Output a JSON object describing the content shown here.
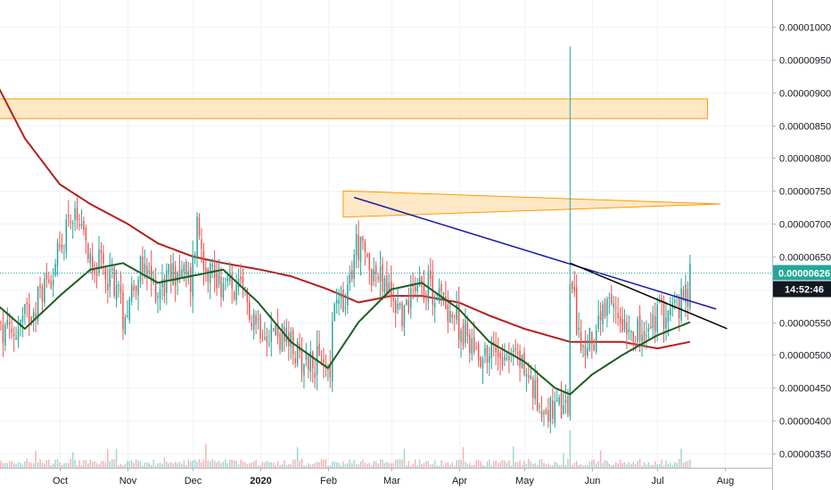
{
  "chart_data": {
    "type": "candlestick",
    "colors": {
      "up": "#26a69a",
      "down": "#ef5350",
      "ma_fast": "#1b5e20",
      "ma_slow": "#b71c1c",
      "trendline_blue": "#1a1aaa",
      "trendline_black": "#000000",
      "zone_fill": "#ffe0b2",
      "zone_border": "#ff9800",
      "last_price_line": "#26a69a",
      "timer_bg": "#131722"
    },
    "y_axis": {
      "min": 3.3e-06,
      "max": 1.04e-05,
      "ticks": [
        "0.00001000",
        "0.00000950",
        "0.00000900",
        "0.00000850",
        "0.00000800",
        "0.00000750",
        "0.00000700",
        "0.00000650",
        "0.00000600",
        "0.00000550",
        "0.00000500",
        "0.00000450",
        "0.00000400",
        "0.00000350"
      ]
    },
    "x_axis": {
      "ticks": [
        {
          "label": "Oct",
          "date": "2019-10-01",
          "bold": false
        },
        {
          "label": "Nov",
          "date": "2019-11-01",
          "bold": false
        },
        {
          "label": "Dec",
          "date": "2019-12-01",
          "bold": false
        },
        {
          "label": "2020",
          "date": "2020-01-01",
          "bold": true
        },
        {
          "label": "Feb",
          "date": "2020-02-01",
          "bold": false
        },
        {
          "label": "Mar",
          "date": "2020-03-01",
          "bold": false
        },
        {
          "label": "Apr",
          "date": "2020-04-01",
          "bold": false
        },
        {
          "label": "May",
          "date": "2020-05-01",
          "bold": false
        },
        {
          "label": "Jun",
          "date": "2020-06-01",
          "bold": false
        },
        {
          "label": "Jul",
          "date": "2020-07-01",
          "bold": false
        },
        {
          "label": "Aug",
          "date": "2020-08-01",
          "bold": false
        }
      ]
    },
    "last_price": {
      "value": 6.26e-06,
      "label": "0.00000626"
    },
    "countdown": "14:52:46",
    "close_anchors": [
      [
        "2019-09-09",
        5.3e-06
      ],
      [
        "2019-09-20",
        5.8e-06
      ],
      [
        "2019-10-02",
        6.6e-06
      ],
      [
        "2019-10-05",
        7.2e-06
      ],
      [
        "2019-10-12",
        6.7e-06
      ],
      [
        "2019-10-18",
        6.4e-06
      ],
      [
        "2019-10-27",
        6.1e-06
      ],
      [
        "2019-10-30",
        5.6e-06
      ],
      [
        "2019-11-06",
        6.3e-06
      ],
      [
        "2019-11-15",
        6e-06
      ],
      [
        "2019-11-24",
        6.3e-06
      ],
      [
        "2019-11-30",
        6.1e-06
      ],
      [
        "2019-12-03",
        7e-06
      ],
      [
        "2019-12-07",
        6.4e-06
      ],
      [
        "2019-12-14",
        6.1e-06
      ],
      [
        "2019-12-24",
        5.9e-06
      ],
      [
        "2019-12-31",
        5.5e-06
      ],
      [
        "2020-01-10",
        5.3e-06
      ],
      [
        "2020-01-18",
        5e-06
      ],
      [
        "2020-01-26",
        4.9e-06
      ],
      [
        "2020-02-02",
        4.8e-06
      ],
      [
        "2020-02-04",
        5.8e-06
      ],
      [
        "2020-02-09",
        5.7e-06
      ],
      [
        "2020-02-14",
        6.7e-06
      ],
      [
        "2020-02-21",
        6.3e-06
      ],
      [
        "2020-03-01",
        5.9e-06
      ],
      [
        "2020-03-07",
        5.6e-06
      ],
      [
        "2020-03-12",
        6.2e-06
      ],
      [
        "2020-03-20",
        6e-06
      ],
      [
        "2020-03-28",
        5.7e-06
      ],
      [
        "2020-04-04",
        5.3e-06
      ],
      [
        "2020-04-12",
        5e-06
      ],
      [
        "2020-04-22",
        5.1e-06
      ],
      [
        "2020-04-30",
        4.9e-06
      ],
      [
        "2020-05-07",
        4.3e-06
      ],
      [
        "2020-05-15",
        4.1e-06
      ],
      [
        "2020-05-21",
        4.2e-06
      ],
      [
        "2020-05-22",
        6.1e-06
      ],
      [
        "2020-05-28",
        5e-06
      ],
      [
        "2020-06-05",
        5.5e-06
      ],
      [
        "2020-06-10",
        5.7e-06
      ],
      [
        "2020-06-18",
        5.5e-06
      ],
      [
        "2020-06-25",
        5.2e-06
      ],
      [
        "2020-07-01",
        5.6e-06
      ],
      [
        "2020-07-08",
        5.7e-06
      ],
      [
        "2020-07-13",
        5.8e-06
      ],
      [
        "2020-07-15",
        5.9e-06
      ],
      [
        "2020-07-16",
        6.26e-06
      ]
    ],
    "ma_fast_anchors": [
      [
        "2019-09-01",
        5.8e-06
      ],
      [
        "2019-09-15",
        5.4e-06
      ],
      [
        "2019-10-01",
        5.9e-06
      ],
      [
        "2019-10-15",
        6.3e-06
      ],
      [
        "2019-10-30",
        6.4e-06
      ],
      [
        "2019-11-15",
        6.1e-06
      ],
      [
        "2019-11-30",
        6.2e-06
      ],
      [
        "2019-12-15",
        6.3e-06
      ],
      [
        "2019-12-31",
        5.8e-06
      ],
      [
        "2020-01-15",
        5.2e-06
      ],
      [
        "2020-02-01",
        4.8e-06
      ],
      [
        "2020-02-15",
        5.5e-06
      ],
      [
        "2020-03-01",
        6e-06
      ],
      [
        "2020-03-15",
        6.1e-06
      ],
      [
        "2020-04-01",
        5.7e-06
      ],
      [
        "2020-04-15",
        5.2e-06
      ],
      [
        "2020-05-01",
        4.9e-06
      ],
      [
        "2020-05-15",
        4.5e-06
      ],
      [
        "2020-05-22",
        4.4e-06
      ],
      [
        "2020-06-01",
        4.7e-06
      ],
      [
        "2020-06-15",
        5e-06
      ],
      [
        "2020-07-01",
        5.3e-06
      ],
      [
        "2020-07-16",
        5.5e-06
      ]
    ],
    "ma_slow_anchors": [
      [
        "2019-09-01",
        9.2e-06
      ],
      [
        "2019-09-15",
        8.3e-06
      ],
      [
        "2019-10-01",
        7.6e-06
      ],
      [
        "2019-10-15",
        7.3e-06
      ],
      [
        "2019-11-01",
        7e-06
      ],
      [
        "2019-11-15",
        6.7e-06
      ],
      [
        "2019-12-01",
        6.5e-06
      ],
      [
        "2019-12-15",
        6.4e-06
      ],
      [
        "2020-01-01",
        6.3e-06
      ],
      [
        "2020-01-15",
        6.2e-06
      ],
      [
        "2020-02-01",
        6e-06
      ],
      [
        "2020-02-15",
        5.8e-06
      ],
      [
        "2020-03-01",
        5.9e-06
      ],
      [
        "2020-03-15",
        5.9e-06
      ],
      [
        "2020-04-01",
        5.8e-06
      ],
      [
        "2020-04-15",
        5.6e-06
      ],
      [
        "2020-05-01",
        5.4e-06
      ],
      [
        "2020-05-22",
        5.2e-06
      ],
      [
        "2020-06-01",
        5.2e-06
      ],
      [
        "2020-06-15",
        5.2e-06
      ],
      [
        "2020-07-01",
        5.1e-06
      ],
      [
        "2020-07-16",
        5.2e-06
      ]
    ],
    "zones": [
      {
        "from": [
          "2019-09-01",
          8.9e-06
        ],
        "to": [
          "2020-07-24",
          8.6e-06
        ],
        "to_top": 8.9e-06,
        "from_bottom": 8.6e-06
      },
      {
        "from": [
          "2020-02-08",
          7.5e-06
        ],
        "to": [
          "2020-07-30",
          7.3e-06
        ],
        "to_top": 7.3e-06,
        "from_bottom": 7.1e-06
      }
    ],
    "trendlines": [
      {
        "color_key": "trendline_blue",
        "from": [
          "2020-02-13",
          7.4e-06
        ],
        "to": [
          "2020-07-28",
          5.7e-06
        ]
      },
      {
        "color_key": "trendline_black",
        "from": [
          "2020-05-22",
          6.4e-06
        ],
        "to": [
          "2020-08-02",
          5.4e-06
        ]
      }
    ],
    "spike": {
      "date": "2020-05-22",
      "high": 9.7e-06,
      "low": 4e-06
    }
  }
}
